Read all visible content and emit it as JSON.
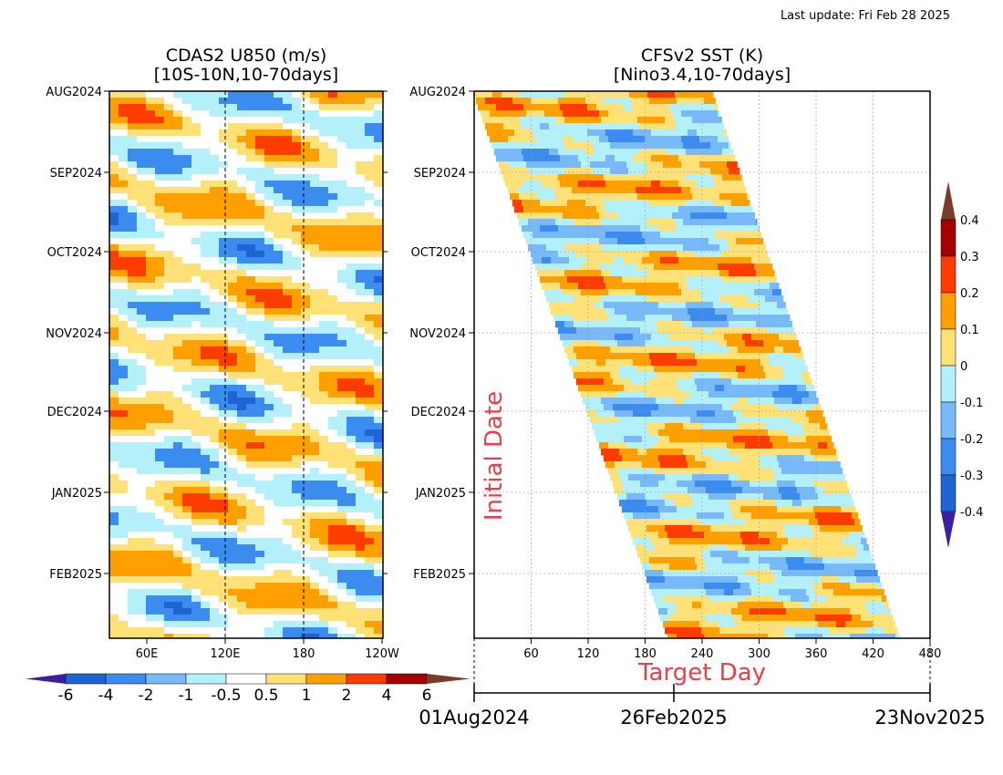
{
  "header": {
    "last_update": "Last update: Fri Feb 28 2025"
  },
  "chart_data": [
    {
      "type": "heatmap",
      "title": "CDAS2 U850 (m/s)",
      "subtitle": "[10S-10N,10-70days]",
      "y_ticks": [
        "AUG2024",
        "SEP2024",
        "OCT2024",
        "NOV2024",
        "DEC2024",
        "JAN2025",
        "FEB2025"
      ],
      "x_ticks": [
        "60E",
        "120E",
        "180",
        "120W"
      ],
      "dashed_reference_lines": [
        "120E",
        "180"
      ],
      "colorbar": {
        "levels": [
          "-6",
          "-4",
          "-2",
          "-1",
          "-0.5",
          "0.5",
          "1",
          "2",
          "4",
          "6"
        ],
        "colors": [
          "#3c1e9e",
          "#1e64d2",
          "#3c8cf0",
          "#78b9fa",
          "#b4f0fa",
          "#ffffff",
          "#ffe178",
          "#ffa000",
          "#ff3c00",
          "#a50000",
          "#783c28"
        ]
      },
      "grid": false
    },
    {
      "type": "heatmap",
      "title": "CFSv2 SST (K)",
      "subtitle": "[Nino3.4,10-70days]",
      "ylabel": "Initial Date",
      "xlabel": "Target Day",
      "y_ticks": [
        "AUG2024",
        "SEP2024",
        "OCT2024",
        "NOV2024",
        "DEC2024",
        "JAN2025",
        "FEB2025"
      ],
      "x_ticks": [
        "60",
        "120",
        "180",
        "240",
        "300",
        "360",
        "420",
        "480"
      ],
      "x_range": [
        0,
        480
      ],
      "date_axis": [
        "01Aug2024",
        "26Feb2025",
        "23Nov2025"
      ],
      "colorbar": {
        "levels": [
          "0.4",
          "0.3",
          "0.2",
          "0.1",
          "0",
          "-0.1",
          "-0.2",
          "-0.3",
          "-0.4"
        ],
        "colors": [
          "#783c28",
          "#a50000",
          "#ff3c00",
          "#ffa000",
          "#ffe178",
          "#b4f0fa",
          "#78b9fa",
          "#3c8cf0",
          "#1e64d2",
          "#3c1e9e"
        ]
      },
      "grid": true
    }
  ]
}
